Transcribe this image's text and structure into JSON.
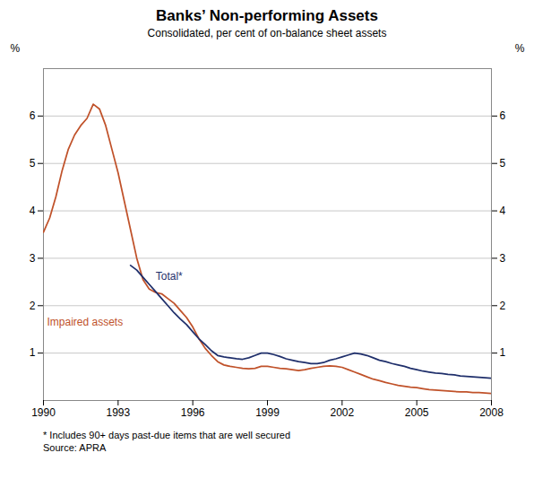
{
  "chart_data": {
    "type": "line",
    "title": "Banks’ Non-performing Assets",
    "subtitle": "Consolidated, per cent of on-balance sheet assets",
    "ylabel": "%",
    "footnotes": [
      "* Includes 90+ days past-due items that are well secured",
      "Source: APRA"
    ],
    "xlim": [
      1990,
      2008
    ],
    "xticks": [
      1990,
      1993,
      1996,
      1999,
      2002,
      2005,
      2008
    ],
    "ylim": [
      0,
      7
    ],
    "yticks": [
      1,
      2,
      3,
      4,
      5,
      6
    ],
    "grid": true,
    "series": [
      {
        "name": "Impaired assets",
        "color": "#c0522a",
        "x": [
          1990.0,
          1990.25,
          1990.5,
          1990.75,
          1991.0,
          1991.25,
          1991.5,
          1991.75,
          1992.0,
          1992.25,
          1992.5,
          1992.75,
          1993.0,
          1993.25,
          1993.5,
          1993.75,
          1994.0,
          1994.25,
          1994.5,
          1994.75,
          1995.0,
          1995.25,
          1995.5,
          1995.75,
          1996.0,
          1996.25,
          1996.5,
          1996.75,
          1997.0,
          1997.25,
          1997.5,
          1997.75,
          1998.0,
          1998.25,
          1998.5,
          1998.75,
          1999.0,
          1999.25,
          1999.5,
          1999.75,
          2000.0,
          2000.25,
          2000.5,
          2000.75,
          2001.0,
          2001.25,
          2001.5,
          2001.75,
          2002.0,
          2002.25,
          2002.5,
          2002.75,
          2003.0,
          2003.25,
          2003.5,
          2003.75,
          2004.0,
          2004.25,
          2004.5,
          2004.75,
          2005.0,
          2005.25,
          2005.5,
          2005.75,
          2006.0,
          2006.25,
          2006.5,
          2006.75,
          2007.0,
          2007.25,
          2007.5,
          2007.75,
          2008.0
        ],
        "values": [
          3.55,
          3.85,
          4.3,
          4.85,
          5.3,
          5.6,
          5.8,
          5.95,
          6.25,
          6.15,
          5.8,
          5.3,
          4.8,
          4.2,
          3.6,
          3.0,
          2.55,
          2.35,
          2.28,
          2.25,
          2.15,
          2.05,
          1.9,
          1.75,
          1.55,
          1.3,
          1.1,
          0.95,
          0.82,
          0.75,
          0.72,
          0.7,
          0.68,
          0.67,
          0.68,
          0.72,
          0.72,
          0.7,
          0.68,
          0.67,
          0.65,
          0.63,
          0.65,
          0.68,
          0.7,
          0.72,
          0.73,
          0.72,
          0.7,
          0.65,
          0.6,
          0.55,
          0.5,
          0.45,
          0.42,
          0.38,
          0.35,
          0.32,
          0.3,
          0.28,
          0.27,
          0.25,
          0.23,
          0.22,
          0.21,
          0.2,
          0.19,
          0.18,
          0.18,
          0.17,
          0.17,
          0.16,
          0.15
        ]
      },
      {
        "name": "Total*",
        "color": "#1f2f6b",
        "x": [
          1993.5,
          1993.75,
          1994.0,
          1994.25,
          1994.5,
          1994.75,
          1995.0,
          1995.25,
          1995.5,
          1995.75,
          1996.0,
          1996.25,
          1996.5,
          1996.75,
          1997.0,
          1997.25,
          1997.5,
          1997.75,
          1998.0,
          1998.25,
          1998.5,
          1998.75,
          1999.0,
          1999.25,
          1999.5,
          1999.75,
          2000.0,
          2000.25,
          2000.5,
          2000.75,
          2001.0,
          2001.25,
          2001.5,
          2001.75,
          2002.0,
          2002.25,
          2002.5,
          2002.75,
          2003.0,
          2003.25,
          2003.5,
          2003.75,
          2004.0,
          2004.25,
          2004.5,
          2004.75,
          2005.0,
          2005.25,
          2005.5,
          2005.75,
          2006.0,
          2006.25,
          2006.5,
          2006.75,
          2007.0,
          2007.25,
          2007.5,
          2007.75,
          2008.0
        ],
        "values": [
          2.85,
          2.75,
          2.6,
          2.45,
          2.3,
          2.15,
          2.0,
          1.85,
          1.72,
          1.6,
          1.45,
          1.3,
          1.18,
          1.05,
          0.95,
          0.92,
          0.9,
          0.88,
          0.87,
          0.9,
          0.95,
          1.0,
          1.0,
          0.97,
          0.93,
          0.88,
          0.85,
          0.82,
          0.8,
          0.78,
          0.78,
          0.8,
          0.85,
          0.88,
          0.92,
          0.96,
          1.0,
          0.98,
          0.95,
          0.9,
          0.85,
          0.82,
          0.78,
          0.75,
          0.72,
          0.68,
          0.65,
          0.62,
          0.6,
          0.58,
          0.57,
          0.55,
          0.54,
          0.52,
          0.51,
          0.5,
          0.49,
          0.48,
          0.47
        ]
      }
    ]
  }
}
